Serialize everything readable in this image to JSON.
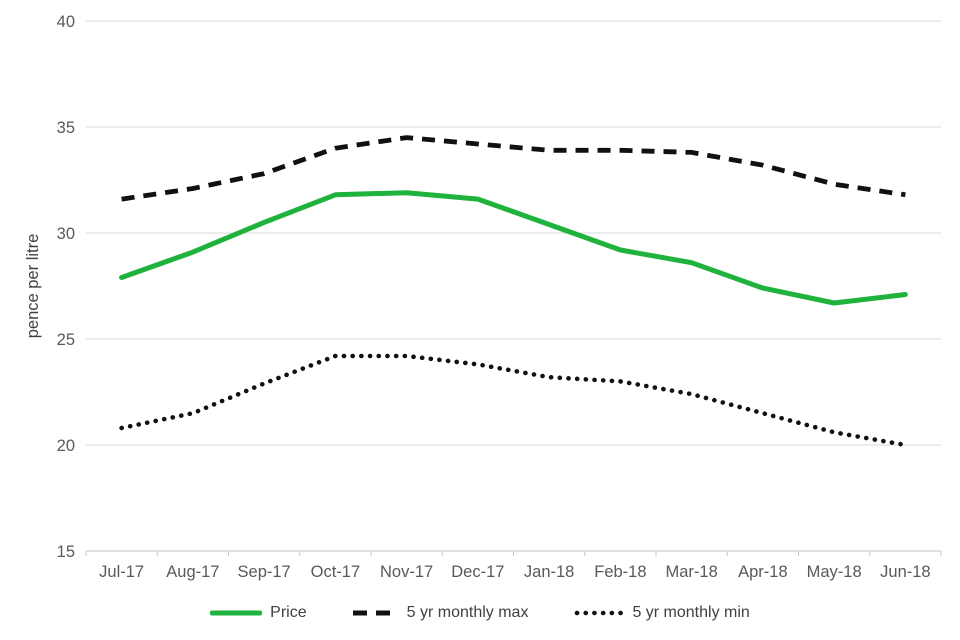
{
  "chart_data": {
    "type": "line",
    "categories": [
      "Jul-17",
      "Aug-17",
      "Sep-17",
      "Oct-17",
      "Nov-17",
      "Dec-17",
      "Jan-18",
      "Feb-18",
      "Mar-18",
      "Apr-18",
      "May-18",
      "Jun-18"
    ],
    "series": [
      {
        "name": "Price",
        "style": "solid",
        "color": "#1fb23c",
        "values": [
          27.9,
          29.1,
          30.5,
          31.8,
          31.9,
          31.6,
          30.4,
          29.2,
          28.6,
          27.4,
          26.7,
          27.1
        ]
      },
      {
        "name": "5 yr monthly max",
        "style": "dashed",
        "color": "#111111",
        "values": [
          31.6,
          32.1,
          32.8,
          34.0,
          34.5,
          34.2,
          33.9,
          33.9,
          33.8,
          33.2,
          32.3,
          31.8
        ]
      },
      {
        "name": "5 yr monthly min",
        "style": "dotted",
        "color": "#111111",
        "values": [
          20.8,
          21.5,
          22.9,
          24.2,
          24.2,
          23.8,
          23.2,
          23.0,
          22.4,
          21.5,
          20.6,
          20.0
        ]
      }
    ],
    "title": "",
    "xlabel": "",
    "ylabel": "pence per litre",
    "ylim": [
      15,
      40
    ],
    "yticks": [
      15,
      20,
      25,
      30,
      35,
      40
    ],
    "grid": "horizontal",
    "legend_position": "bottom"
  },
  "colors": {
    "gridline": "#d9d9d9",
    "axis_line": "#c6c6c6",
    "tick_label": "#595959",
    "axis_title": "#404040",
    "legend_text": "#404040"
  }
}
